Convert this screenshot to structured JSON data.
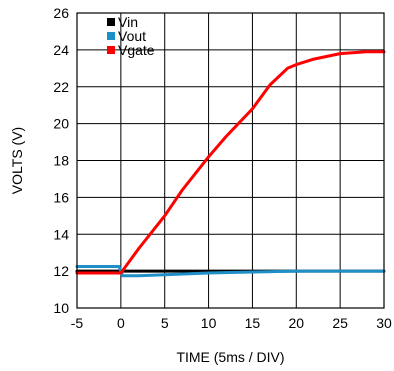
{
  "chart_data": {
    "type": "line",
    "title": "",
    "xlabel": "TIME (5ms / DIV)",
    "ylabel": "VOLTS (V)",
    "xlim": [
      -5,
      30
    ],
    "ylim": [
      10,
      26
    ],
    "x_ticks": [
      -5,
      0,
      5,
      10,
      15,
      20,
      25,
      30
    ],
    "y_ticks": [
      10,
      12,
      14,
      16,
      18,
      20,
      22,
      24,
      26
    ],
    "grid": true,
    "legend_position": "top-left",
    "series": [
      {
        "name": "Vin",
        "color": "#000000",
        "x": [
          -5,
          0,
          5,
          10,
          15,
          20,
          25,
          30
        ],
        "y": [
          12.0,
          12.0,
          12.0,
          12.0,
          12.0,
          12.0,
          12.0,
          12.0
        ]
      },
      {
        "name": "Vout",
        "color": "#1f8fc8",
        "x": [
          -5,
          -0.2,
          0.2,
          2,
          5,
          10,
          15,
          20,
          25,
          30
        ],
        "y": [
          12.25,
          12.25,
          11.75,
          11.75,
          11.8,
          11.9,
          11.95,
          12.0,
          12.0,
          12.0
        ]
      },
      {
        "name": "Vgate",
        "color": "#ff0000",
        "x": [
          -5,
          0,
          2,
          5,
          7,
          10,
          12,
          15,
          17,
          19,
          20,
          22,
          25,
          28,
          30
        ],
        "y": [
          11.9,
          11.9,
          13.2,
          15.0,
          16.4,
          18.2,
          19.3,
          20.8,
          22.1,
          23.0,
          23.2,
          23.5,
          23.8,
          23.9,
          23.9
        ]
      }
    ]
  }
}
